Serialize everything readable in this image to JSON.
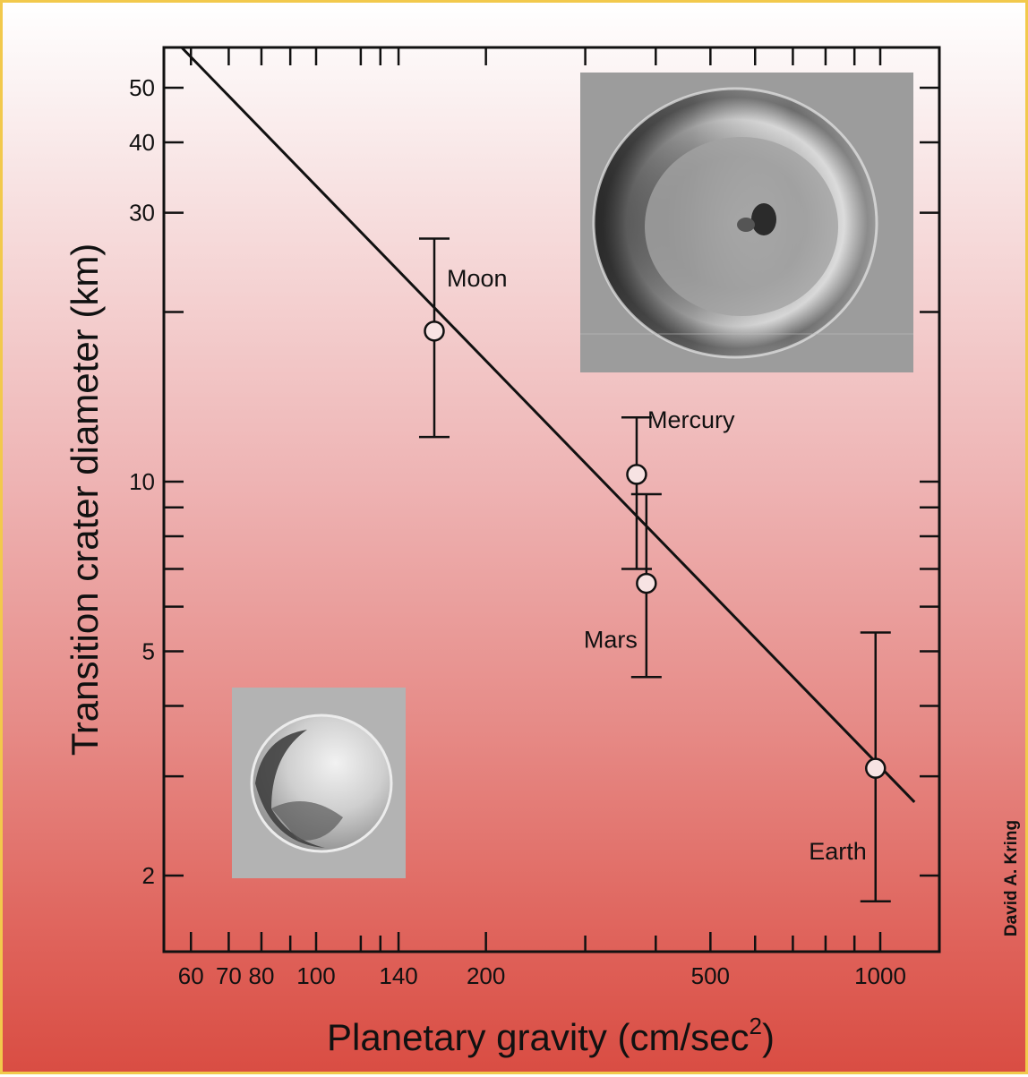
{
  "chart_data": {
    "type": "scatter",
    "title": "",
    "xlabel": "Planetary gravity (cm/sec",
    "xlabel_superscript": "2",
    "xlabel_close": ")",
    "ylabel": "Transition crater diameter (km)",
    "x_scale": "log",
    "y_scale": "log",
    "xlim": [
      55,
      1250
    ],
    "ylim": [
      1.5,
      60
    ],
    "x_ticks_labeled": [
      60,
      70,
      80,
      100,
      140,
      200,
      500,
      1000
    ],
    "x_ticks_unlabeled": [
      90,
      120,
      130,
      300,
      400,
      600,
      700,
      800,
      900
    ],
    "x_ticks_top": [
      60,
      70,
      80,
      90,
      100,
      120,
      130,
      140,
      200,
      300,
      400,
      500,
      600,
      700,
      800,
      900,
      1000
    ],
    "y_ticks_labeled": [
      2,
      5,
      10,
      30,
      40,
      50
    ],
    "y_ticks_unlabeled": [
      3,
      4,
      6,
      7,
      8,
      9,
      20
    ],
    "grid": false,
    "points": [
      {
        "name": "Moon",
        "x": 162,
        "y": 18.5,
        "y_low": 12,
        "y_high": 27
      },
      {
        "name": "Mercury",
        "x": 370,
        "y": 10.3,
        "y_low": 7.0,
        "y_high": 13
      },
      {
        "name": "Mars",
        "x": 385,
        "y": 6.6,
        "y_low": 4.5,
        "y_high": 9.5
      },
      {
        "name": "Earth",
        "x": 981,
        "y": 3.1,
        "y_low": 1.8,
        "y_high": 5.4
      }
    ],
    "fit_line": {
      "x": [
        55,
        1150
      ],
      "y": [
        62,
        2.7
      ]
    },
    "credit": "David A. Kring"
  },
  "insets": {
    "large_crater_icon": "complex-crater-photo",
    "small_crater_icon": "simple-crater-photo"
  }
}
